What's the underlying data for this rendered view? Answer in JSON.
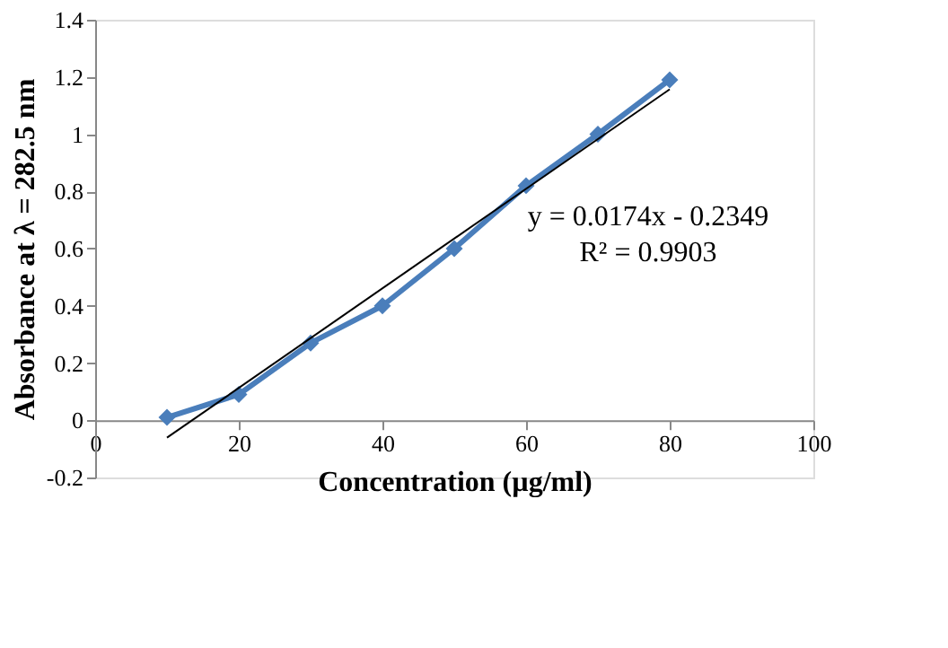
{
  "chart_data": {
    "type": "line",
    "xlabel": "Concentration (µg/ml)",
    "ylabel": "Absorbance at λ = 282.5 nm",
    "x": [
      10,
      20,
      30,
      40,
      50,
      60,
      70,
      80
    ],
    "series": [
      {
        "color": "#4a7ebb",
        "values": [
          0.01,
          0.09,
          0.27,
          0.4,
          0.6,
          0.82,
          1.0,
          1.19
        ],
        "marker": "diamond"
      },
      {
        "type": "line",
        "color": "#000000",
        "x": [
          10,
          80
        ],
        "values": [
          -0.061,
          1.157
        ],
        "marker": "none"
      }
    ],
    "xlim": [
      0,
      100
    ],
    "xticks": [
      0,
      20,
      40,
      60,
      80,
      100
    ],
    "ylim": [
      -0.2,
      1.4
    ],
    "yticks": [
      -0.2,
      0,
      0.2,
      0.4,
      0.6,
      0.8,
      1,
      1.2,
      1.4
    ],
    "grid": false,
    "legend": false,
    "annotations": [
      "y = 0.0174x - 0.2349",
      "R² = 0.9903"
    ]
  }
}
